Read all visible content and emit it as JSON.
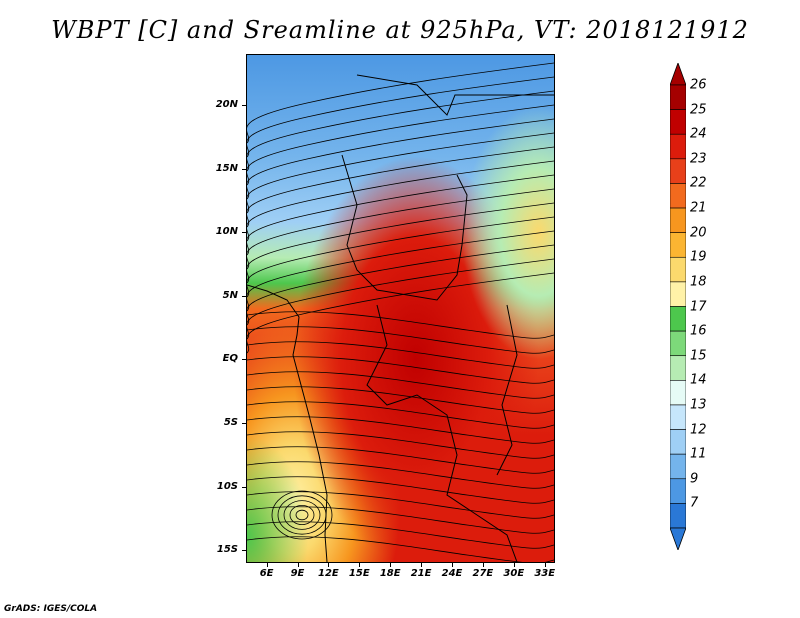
{
  "title": "WBPT [C] and Sreamline at 925hPa, VT: 2018121912",
  "footer": "GrADS: IGES/COLA",
  "map": {
    "type": "filled-contour-with-streamlines",
    "variable": "WBPT",
    "level": "925hPa",
    "lon_range": [
      4,
      34
    ],
    "lat_range": [
      -16,
      24
    ],
    "lat_labels": [
      {
        "value": 20,
        "label": "20N"
      },
      {
        "value": 15,
        "label": "15N"
      },
      {
        "value": 10,
        "label": "10N"
      },
      {
        "value": 5,
        "label": "5N"
      },
      {
        "value": 0,
        "label": "EQ"
      },
      {
        "value": -5,
        "label": "5S"
      },
      {
        "value": -10,
        "label": "10S"
      },
      {
        "value": -15,
        "label": "15S"
      }
    ],
    "lon_labels": [
      {
        "value": 6,
        "label": "6E"
      },
      {
        "value": 9,
        "label": "9E"
      },
      {
        "value": 12,
        "label": "12E"
      },
      {
        "value": 15,
        "label": "15E"
      },
      {
        "value": 18,
        "label": "18E"
      },
      {
        "value": 21,
        "label": "21E"
      },
      {
        "value": 24,
        "label": "24E"
      },
      {
        "value": 27,
        "label": "27E"
      },
      {
        "value": 30,
        "label": "30E"
      },
      {
        "value": 33,
        "label": "33E"
      }
    ]
  },
  "colorbar": {
    "levels": [
      "26",
      "25",
      "24",
      "23",
      "22",
      "21",
      "20",
      "19",
      "18",
      "17",
      "16",
      "15",
      "14",
      "13",
      "12",
      "11",
      "9",
      "7"
    ],
    "colors": [
      "#a50000",
      "#c00000",
      "#dc1c0c",
      "#e8401a",
      "#f26a1e",
      "#f7961f",
      "#fbb532",
      "#fbd96d",
      "#fff2a8",
      "#4dc74d",
      "#7dd97a",
      "#b6ecb3",
      "#e6fbf6",
      "#c6e6fb",
      "#9fcff5",
      "#74b4ec",
      "#4d98e3",
      "#2a78d6"
    ],
    "top_arrow_color": "#a50000",
    "bottom_arrow_color": "#2a78d6"
  }
}
